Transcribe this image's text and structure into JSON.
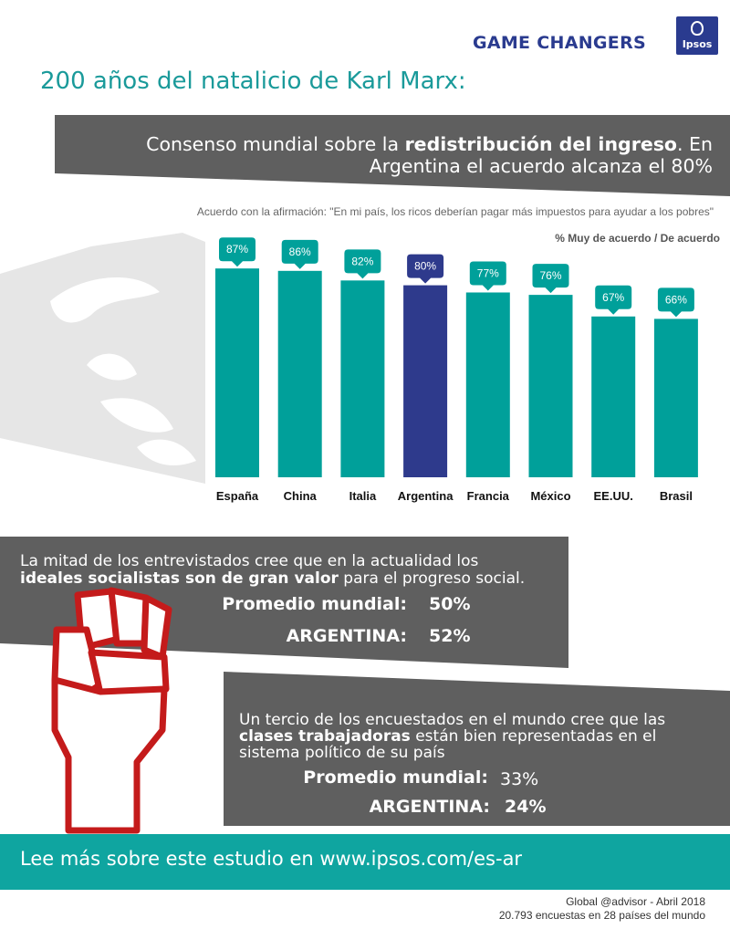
{
  "header": {
    "brand": "GAME CHANGERS",
    "logo_text": "Ipsos"
  },
  "title": "200 años del natalicio de Karl Marx:",
  "banner1": {
    "line1_pre": "Consenso mundial sobre la ",
    "line1_bold": "redistribución del ingreso",
    "line1_post": ". En",
    "line2": "Argentina el acuerdo alcanza el 80%"
  },
  "chart_data": {
    "type": "bar",
    "title": "Acuerdo con la afirmación: \"En mi país, los ricos deberían pagar más impuestos para ayudar a los pobres\"",
    "ylabel": "% Muy de acuerdo / De acuerdo",
    "categories": [
      "España",
      "China",
      "Italia",
      "Argentina",
      "Francia",
      "México",
      "EE.UU.",
      "Brasil"
    ],
    "values": [
      87,
      86,
      82,
      80,
      77,
      76,
      67,
      66
    ],
    "labels": [
      "87%",
      "86%",
      "82%",
      "80%",
      "77%",
      "76%",
      "67%",
      "66%"
    ],
    "highlight": "Argentina",
    "colors": {
      "default": "#00a09a",
      "highlight": "#2e3a8c"
    },
    "grid": false
  },
  "block2": {
    "line1": "La mitad de los entrevistados cree que en la actualidad los",
    "line2_bold": "ideales socialistas son de gran valor",
    "line2_post": " para el progreso social.",
    "row1_label": "Promedio mundial:",
    "row1_value": "50%",
    "row2_label": "ARGENTINA:",
    "row2_value": "52%"
  },
  "block3": {
    "line1": "Un tercio de los encuestados en el mundo cree que las",
    "line2_bold": "clases trabajadoras",
    "line2_post": " están bien representadas en el",
    "line3": "sistema político de su país",
    "row1_label": "Promedio mundial:",
    "row1_value": "33%",
    "row2_label": "ARGENTINA:",
    "row2_value": "24%"
  },
  "footer": {
    "cta": "Lee más sobre este estudio en www.ipsos.com/es-ar",
    "source1": "Global @advisor  - Abril 2018",
    "source2": "20.793 encuestas en 28 países del mundo"
  }
}
